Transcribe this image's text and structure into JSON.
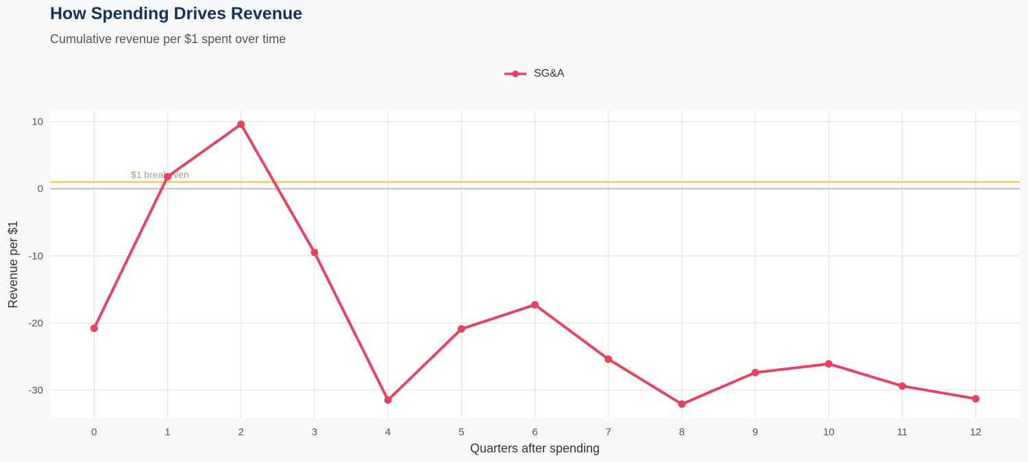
{
  "title": "How Spending Drives Revenue",
  "subtitle": "Cumulative revenue per $1 spent over time",
  "chart_data": {
    "type": "line",
    "xlabel": "Quarters after spending",
    "ylabel": "Revenue per $1",
    "x": [
      0,
      1,
      2,
      3,
      4,
      5,
      6,
      7,
      8,
      9,
      10,
      11,
      12
    ],
    "series": [
      {
        "name": "SG&A",
        "color": "#e5445f",
        "values": [
          -20.8,
          1.8,
          9.6,
          -9.5,
          -31.5,
          -20.9,
          -17.3,
          -25.4,
          -32.1,
          -27.4,
          -26.1,
          -29.4,
          -31.3
        ]
      }
    ],
    "xlim": [
      -0.6,
      12.6
    ],
    "ylim": [
      -34.2,
      11.6
    ],
    "yticks": [
      10,
      0,
      -10,
      -20,
      -30
    ],
    "xticks": [
      0,
      1,
      2,
      3,
      4,
      5,
      6,
      7,
      8,
      9,
      10,
      11,
      12
    ],
    "reference_line": {
      "y": 1,
      "label": "$1 breakeven",
      "color": "#f7c65a"
    },
    "grid": true,
    "legend_position": "top"
  }
}
